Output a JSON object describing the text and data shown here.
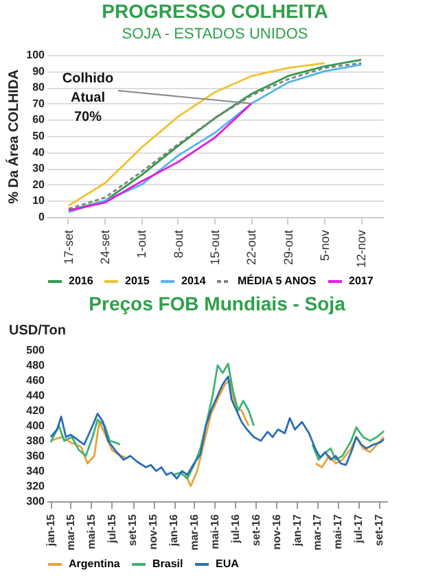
{
  "chart_data": [
    {
      "type": "line",
      "title": "PROGRESSO COLHEITA",
      "subtitle": "SOJA - ESTADOS UNIDOS",
      "ylabel": "% Da Área COLHIDA",
      "categories": [
        "17-set",
        "24-set",
        "1-out",
        "8-out",
        "15-out",
        "22-out",
        "29-out",
        "5-nov",
        "12-nov"
      ],
      "series": [
        {
          "name": "2016",
          "color": "#2e9a48",
          "values": [
            4,
            10,
            26,
            44,
            61,
            76,
            87,
            93,
            97
          ]
        },
        {
          "name": "2015",
          "color": "#f2c12e",
          "values": [
            7,
            21,
            43,
            62,
            77,
            87,
            92,
            95,
            null
          ]
        },
        {
          "name": "2014",
          "color": "#4fb6e8",
          "values": [
            3,
            10,
            20,
            38,
            52,
            70,
            83,
            90,
            94
          ]
        },
        {
          "name": "MÉDIA 5 ANOS",
          "color": "#808080",
          "line_style": "dashed",
          "values": [
            5,
            12,
            28,
            45,
            61,
            75,
            85,
            92,
            95
          ]
        },
        {
          "name": "2017",
          "color": "#e619e6",
          "values": [
            4,
            9,
            22,
            34,
            49,
            70,
            null,
            null,
            null
          ]
        }
      ],
      "ylim": [
        0,
        100
      ],
      "yticks": [
        0,
        10,
        20,
        30,
        40,
        50,
        60,
        70,
        80,
        90,
        100
      ],
      "grid": "y",
      "legend": "bottom",
      "marker": "none",
      "annotations": [
        {
          "text": "Colhido Atual 70%",
          "x": "22-out",
          "y": 70
        }
      ]
    },
    {
      "type": "line",
      "title": "Preços FOB Mundiais - Soja",
      "ylabel": "USD/Ton",
      "series": [
        {
          "name": "Argentina",
          "color": "#e8a33a",
          "x": [
            "2015-01-01",
            "2015-02-01",
            "2015-03-01",
            "2015-04-01",
            "2015-04-20",
            "2015-05-10",
            "2015-05-25",
            "2015-06-10",
            "2015-07-01",
            "2015-07-20",
            "2015-08-10",
            "2015-10-01",
            "2016-02-05",
            "2016-02-20",
            "2016-03-10",
            "2016-04-01",
            "2016-04-20",
            "2016-05-15",
            "2016-06-01",
            "2016-06-15",
            "2016-07-01",
            "2016-07-20",
            "2016-08-10",
            "2016-11-01",
            "2017-02-25",
            "2017-03-15",
            "2017-04-05",
            "2017-04-25",
            "2017-05-15",
            "2017-06-10",
            "2017-06-25",
            "2017-07-15",
            "2017-08-05",
            "2017-08-25",
            "2017-09-15"
          ],
          "values": [
            380,
            385,
            378,
            372,
            350,
            360,
            405,
            390,
            368,
            362,
            358,
            null,
            335,
            320,
            340,
            380,
            415,
            440,
            455,
            460,
            425,
            420,
            400,
            null,
            350,
            345,
            360,
            350,
            355,
            370,
            385,
            370,
            365,
            375,
            385
          ]
        },
        {
          "name": "Brasil",
          "color": "#3cb371",
          "x": [
            "2015-01-01",
            "2015-01-25",
            "2015-02-10",
            "2015-03-05",
            "2015-03-25",
            "2015-04-15",
            "2015-05-05",
            "2015-05-20",
            "2015-06-10",
            "2015-06-25",
            "2015-07-10",
            "2015-07-25",
            "2015-10-01",
            "2016-01-01",
            "2016-01-20",
            "2016-02-10",
            "2016-03-01",
            "2016-03-20",
            "2016-04-10",
            "2016-04-25",
            "2016-05-10",
            "2016-05-25",
            "2016-06-10",
            "2016-06-25",
            "2016-07-10",
            "2016-07-25",
            "2016-08-10",
            "2016-08-25",
            "2016-11-01",
            "2017-02-15",
            "2017-03-05",
            "2017-03-20",
            "2017-04-10",
            "2017-04-25",
            "2017-05-15",
            "2017-06-10",
            "2017-06-25",
            "2017-07-15",
            "2017-08-05",
            "2017-08-25",
            "2017-09-15"
          ],
          "values": [
            378,
            400,
            380,
            385,
            368,
            360,
            385,
            408,
            400,
            380,
            378,
            375,
            null,
            335,
            338,
            330,
            348,
            370,
            410,
            440,
            480,
            470,
            482,
            445,
            420,
            433,
            420,
            400,
            null,
            375,
            355,
            362,
            370,
            355,
            360,
            380,
            398,
            385,
            380,
            385,
            393
          ]
        },
        {
          "name": "EUA",
          "color": "#2a6db5",
          "x": [
            "2015-01-01",
            "2015-01-20",
            "2015-02-01",
            "2015-02-15",
            "2015-03-01",
            "2015-03-20",
            "2015-04-10",
            "2015-05-05",
            "2015-05-20",
            "2015-06-05",
            "2015-06-20",
            "2015-07-10",
            "2015-08-05",
            "2015-08-25",
            "2015-09-15",
            "2015-10-10",
            "2015-10-25",
            "2015-11-10",
            "2015-11-25",
            "2015-12-10",
            "2015-12-25",
            "2016-01-10",
            "2016-01-25",
            "2016-02-10",
            "2016-03-01",
            "2016-03-20",
            "2016-04-05",
            "2016-04-20",
            "2016-05-10",
            "2016-05-25",
            "2016-06-10",
            "2016-06-20",
            "2016-07-05",
            "2016-07-20",
            "2016-08-05",
            "2016-08-25",
            "2016-09-15",
            "2016-10-05",
            "2016-10-20",
            "2016-11-05",
            "2016-11-25",
            "2016-12-10",
            "2016-12-25",
            "2017-01-15",
            "2017-02-05",
            "2017-02-25",
            "2017-03-10",
            "2017-03-25",
            "2017-04-10",
            "2017-04-25",
            "2017-05-10",
            "2017-05-25",
            "2017-06-10",
            "2017-06-25",
            "2017-07-10",
            "2017-07-25",
            "2017-08-15",
            "2017-09-05",
            "2017-09-15"
          ],
          "values": [
            385,
            395,
            412,
            385,
            388,
            382,
            375,
            400,
            416,
            405,
            380,
            368,
            355,
            360,
            352,
            345,
            348,
            340,
            345,
            335,
            338,
            330,
            340,
            335,
            350,
            362,
            400,
            420,
            440,
            455,
            465,
            435,
            420,
            405,
            395,
            385,
            380,
            392,
            385,
            395,
            390,
            410,
            395,
            405,
            390,
            368,
            358,
            365,
            355,
            360,
            350,
            348,
            365,
            385,
            375,
            370,
            375,
            378,
            382
          ]
        }
      ],
      "xlim": [
        "2014-12-20",
        "2017-09-25"
      ],
      "xticks": [
        {
          "value": "2015-01-01",
          "label": "jan-15"
        },
        {
          "value": "2015-03-01",
          "label": "mar-15"
        },
        {
          "value": "2015-05-01",
          "label": "mai-15"
        },
        {
          "value": "2015-07-01",
          "label": "jul-15"
        },
        {
          "value": "2015-09-01",
          "label": "set-15"
        },
        {
          "value": "2015-11-01",
          "label": "nov-15"
        },
        {
          "value": "2016-01-01",
          "label": "jan-16"
        },
        {
          "value": "2016-03-01",
          "label": "mar-16"
        },
        {
          "value": "2016-05-01",
          "label": "mai-16"
        },
        {
          "value": "2016-07-01",
          "label": "jul-16"
        },
        {
          "value": "2016-09-01",
          "label": "set-16"
        },
        {
          "value": "2016-11-01",
          "label": "nov-16"
        },
        {
          "value": "2017-01-01",
          "label": "jan-17"
        },
        {
          "value": "2017-03-01",
          "label": "mar-17"
        },
        {
          "value": "2017-05-01",
          "label": "mai-17"
        },
        {
          "value": "2017-07-01",
          "label": "jul-17"
        },
        {
          "value": "2017-09-01",
          "label": "set-17"
        }
      ],
      "ylim": [
        300,
        500
      ],
      "yticks": [
        300,
        320,
        340,
        360,
        380,
        400,
        420,
        440,
        460,
        480,
        500
      ],
      "legend": "bottom",
      "marker": "none"
    }
  ]
}
